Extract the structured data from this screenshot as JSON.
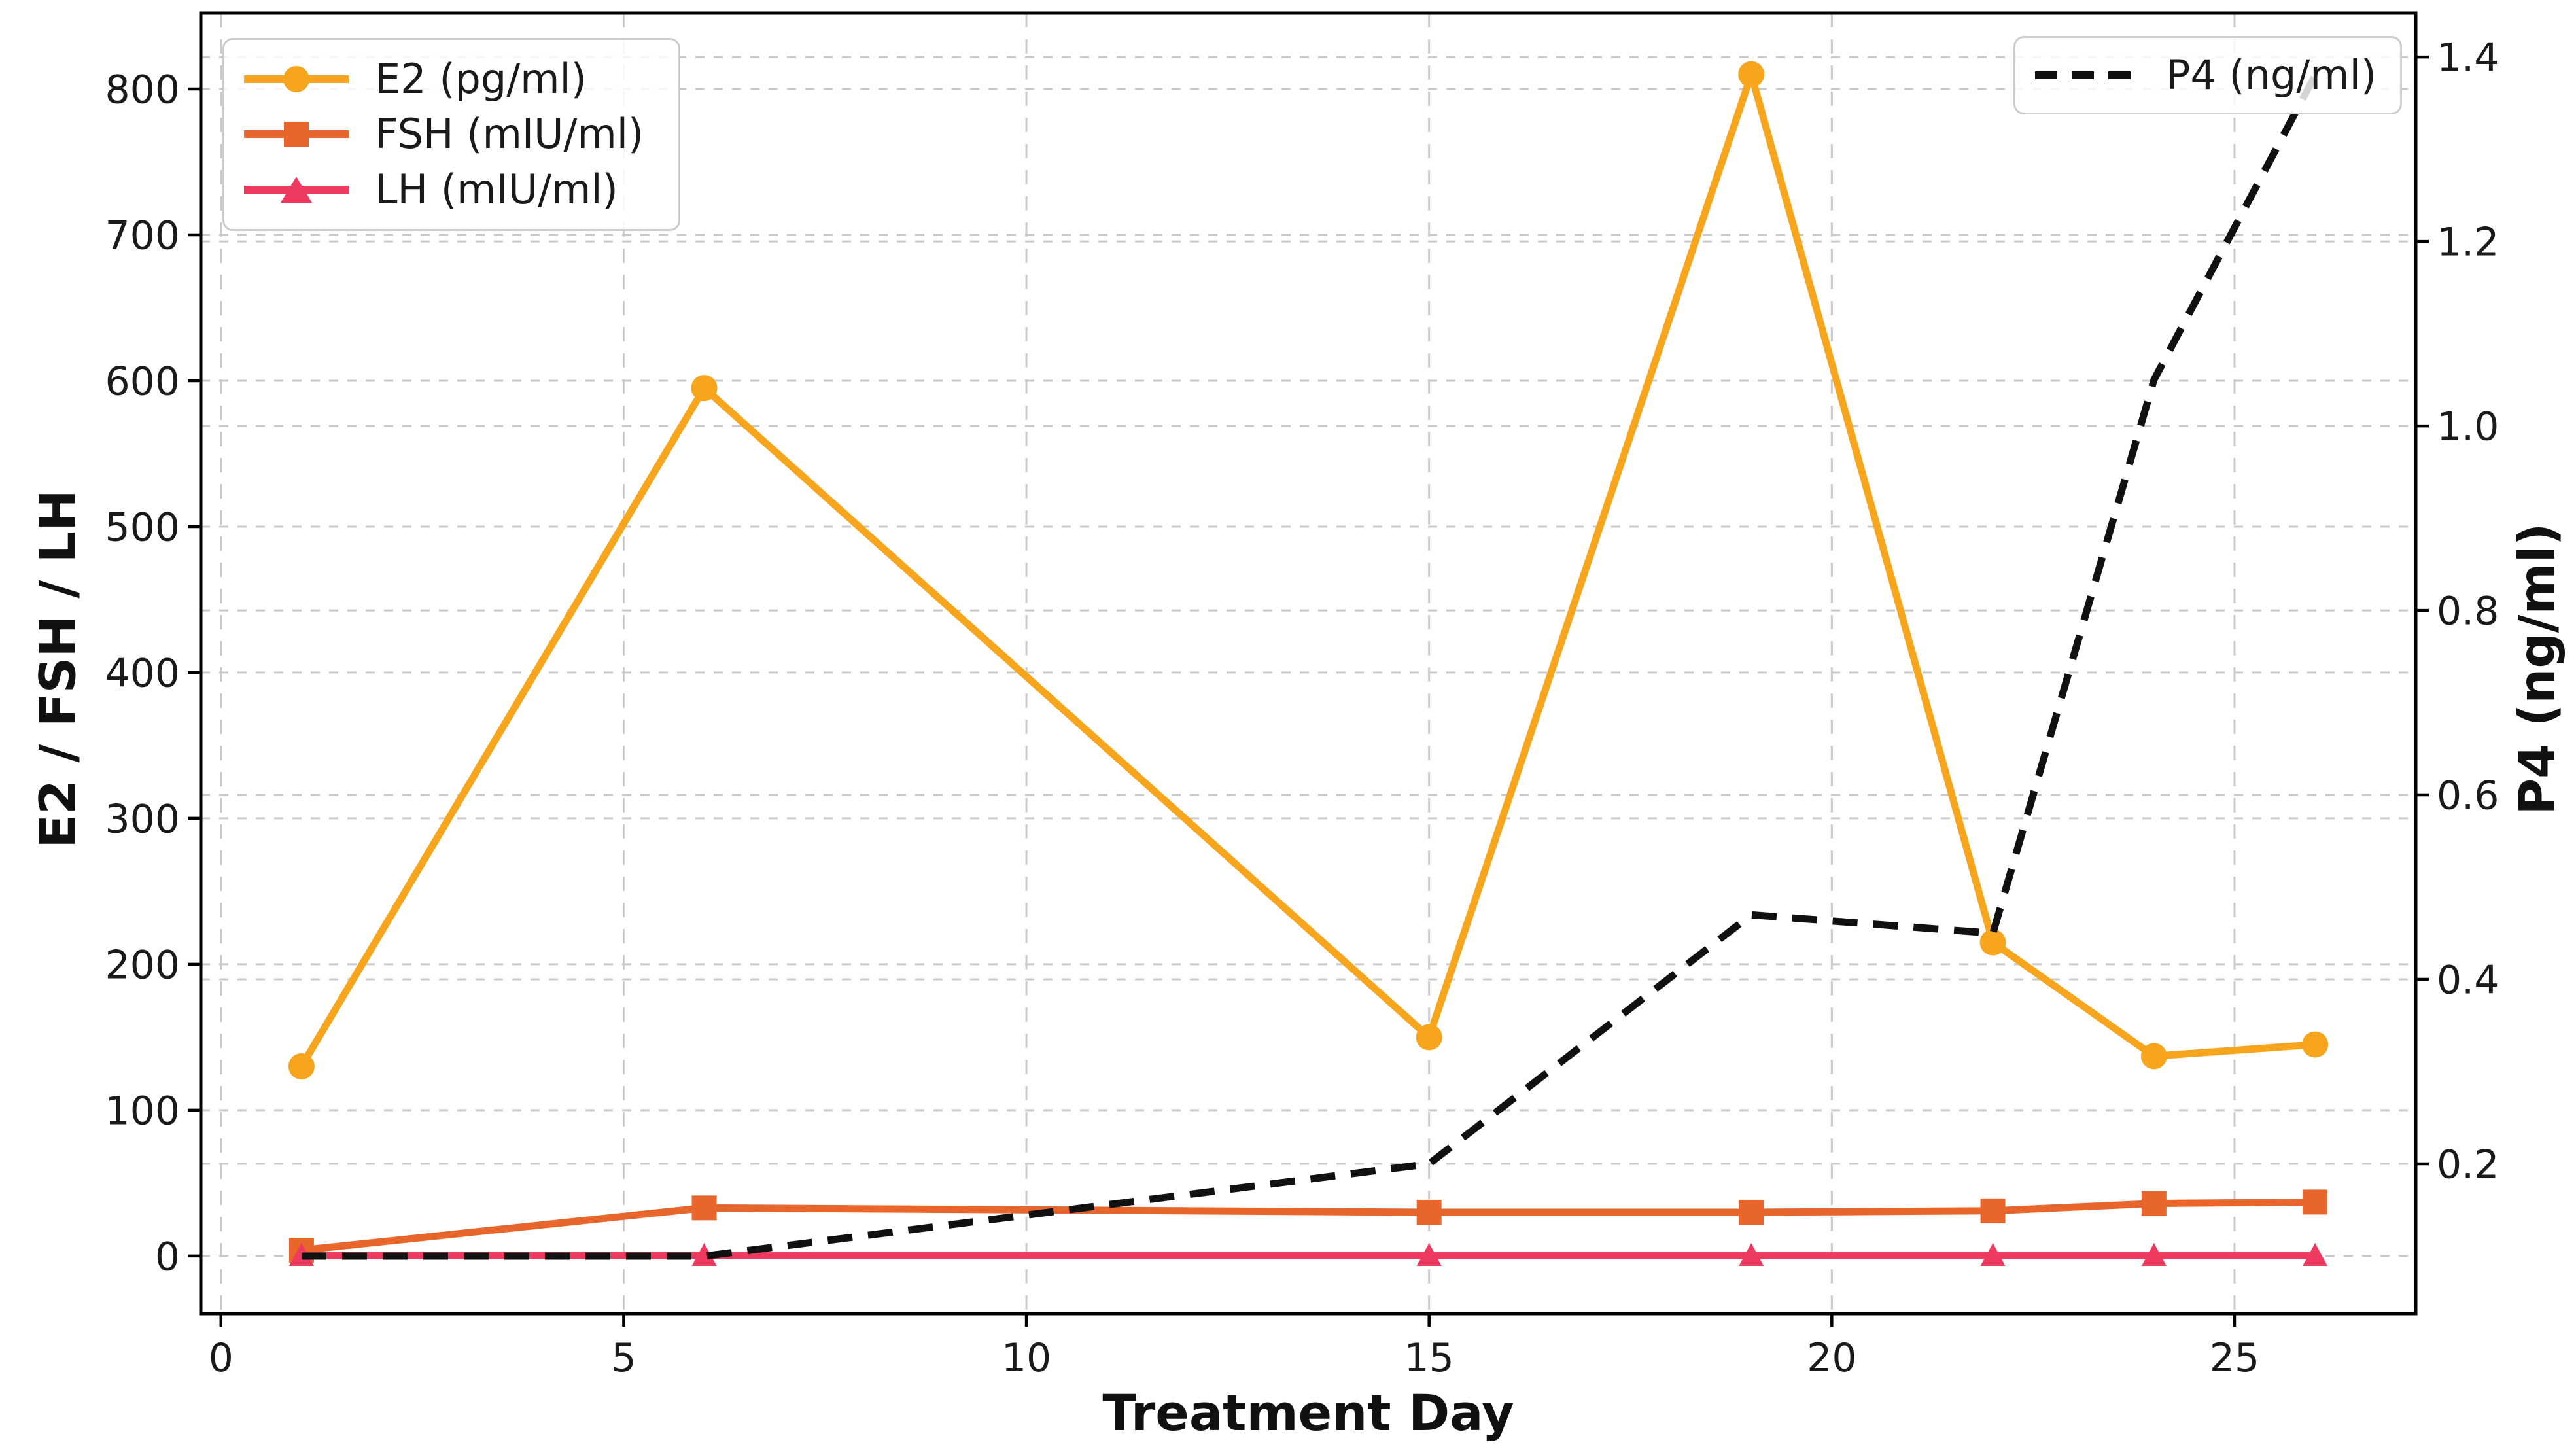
{
  "chart_data": {
    "type": "line",
    "title": "",
    "xlabel": "Treatment Day",
    "ylabel_left": "E2 / FSH / LH",
    "ylabel_right": "P4 (ng/ml)",
    "x_days": [
      1,
      6,
      15,
      19,
      22,
      24,
      26
    ],
    "series": [
      {
        "name": "E2 (pg/ml)",
        "axis": "left",
        "color": "#F7A51C",
        "marker": "circle",
        "dashed": false,
        "values": [
          130,
          595,
          150,
          810,
          215,
          137,
          145
        ]
      },
      {
        "name": "FSH (mIU/ml)",
        "axis": "left",
        "color": "#E8662C",
        "marker": "square",
        "dashed": false,
        "values": [
          4,
          33,
          30,
          30,
          31,
          36,
          37
        ]
      },
      {
        "name": "LH (mIU/ml)",
        "axis": "left",
        "color": "#EE3A5F",
        "marker": "triangle",
        "dashed": false,
        "values": [
          0.4,
          0.4,
          0.4,
          0.4,
          0.4,
          0.4,
          0.4
        ]
      },
      {
        "name": "P4 (ng/ml)",
        "axis": "right",
        "color": "#111111",
        "marker": "none",
        "dashed": true,
        "values": [
          0.1,
          0.1,
          0.2,
          0.47,
          0.45,
          1.05,
          1.38
        ]
      }
    ],
    "x_ticks": [
      0,
      5,
      10,
      15,
      20,
      25
    ],
    "left_ticks": [
      0,
      100,
      200,
      300,
      400,
      500,
      600,
      700,
      800
    ],
    "right_ticks": [
      0.2,
      0.4,
      0.6,
      0.8,
      1.0,
      1.2,
      1.4
    ],
    "xlim": [
      -0.25,
      27.25
    ],
    "ylim_left": [
      -39.5,
      852
    ],
    "ylim_right": [
      0.0376,
      1.4476
    ],
    "grid": true,
    "legend_left_entries": [
      "E2 (pg/ml)",
      "FSH (mIU/ml)",
      "LH (mIU/ml)"
    ],
    "legend_right_entries": [
      "P4 (ng/ml)"
    ],
    "colors": {
      "e2": "#F7A51C",
      "fsh": "#E8662C",
      "lh": "#EE3A5F",
      "p4": "#111111",
      "grid": "#c9c9c9",
      "spine": "#000000",
      "text": "#1a1a1a",
      "legend_border": "#cccccc"
    }
  }
}
